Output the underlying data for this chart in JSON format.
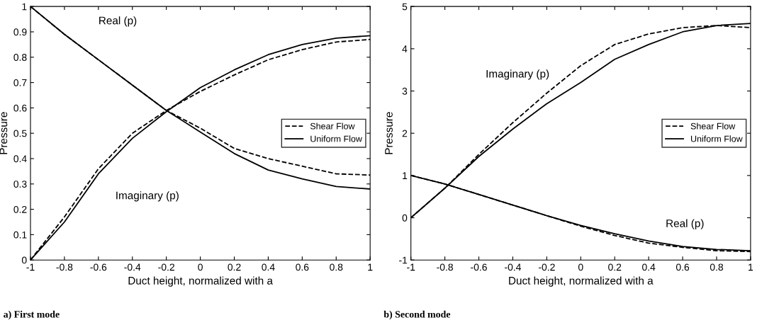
{
  "chart_data": [
    {
      "type": "line",
      "xlabel": "Duct height, normalized with a",
      "ylabel": "Pressure",
      "x": [
        -1,
        -0.8,
        -0.6,
        -0.4,
        -0.2,
        0,
        0.2,
        0.4,
        0.6,
        0.8,
        1
      ],
      "series": [
        {
          "name": "Shear Flow",
          "color": "#000000",
          "line_style": "dashed",
          "values": [
            1,
            0.89,
            0.79,
            0.69,
            0.59,
            0.52,
            0.44,
            0.4,
            0.37,
            0.34,
            0.335
          ]
        },
        {
          "name": "Uniform Flow",
          "color": "#000000",
          "line_style": "solid",
          "values": [
            1,
            0.89,
            0.79,
            0.69,
            0.59,
            0.505,
            0.42,
            0.355,
            0.32,
            0.29,
            0.28
          ]
        },
        {
          "color": "#000000",
          "line_style": "dashed",
          "values": [
            0,
            0.17,
            0.36,
            0.5,
            0.59,
            0.665,
            0.73,
            0.79,
            0.83,
            0.86,
            0.87
          ]
        },
        {
          "color": "#000000",
          "line_style": "solid",
          "values": [
            0,
            0.15,
            0.34,
            0.48,
            0.585,
            0.68,
            0.75,
            0.81,
            0.85,
            0.875,
            0.885
          ]
        }
      ],
      "xlim": [
        -1,
        1
      ],
      "xticks": [
        -1,
        -0.8,
        -0.6,
        -0.4,
        -0.2,
        0,
        0.2,
        0.4,
        0.6,
        0.8,
        1
      ],
      "ylim": [
        0,
        1
      ],
      "yticks": [
        0,
        0.1,
        0.2,
        0.3,
        0.4,
        0.5,
        0.6,
        0.7,
        0.8,
        0.9,
        1
      ],
      "grid": false,
      "legend": "right",
      "annotations": [
        "Real (p)",
        "Imaginary (p)",
        "a) First mode"
      ]
    },
    {
      "type": "line",
      "xlabel": "Duct height, normalized with a",
      "ylabel": "Pressure",
      "x": [
        -1,
        -0.8,
        -0.6,
        -0.4,
        -0.2,
        0,
        0.2,
        0.4,
        0.6,
        0.8,
        1
      ],
      "series": [
        {
          "name": "Shear Flow",
          "color": "#000000",
          "line_style": "dashed",
          "values": [
            0,
            0.7,
            1.5,
            2.25,
            2.95,
            3.6,
            4.1,
            4.35,
            4.5,
            4.55,
            4.5
          ]
        },
        {
          "name": "Uniform Flow",
          "color": "#000000",
          "line_style": "solid",
          "values": [
            0,
            0.7,
            1.45,
            2.1,
            2.7,
            3.2,
            3.75,
            4.1,
            4.4,
            4.55,
            4.6
          ]
        },
        {
          "color": "#000000",
          "line_style": "dashed",
          "values": [
            1,
            0.8,
            0.55,
            0.3,
            0.05,
            -0.2,
            -0.42,
            -0.6,
            -0.7,
            -0.78,
            -0.8
          ]
        },
        {
          "color": "#000000",
          "line_style": "solid",
          "values": [
            1,
            0.8,
            0.55,
            0.3,
            0.05,
            -0.18,
            -0.38,
            -0.55,
            -0.68,
            -0.75,
            -0.78
          ]
        }
      ],
      "xlim": [
        -1,
        1
      ],
      "xticks": [
        -1,
        -0.8,
        -0.6,
        -0.4,
        -0.2,
        0,
        0.2,
        0.4,
        0.6,
        0.8,
        1
      ],
      "ylim": [
        -1,
        5
      ],
      "yticks": [
        -1,
        0,
        1,
        2,
        3,
        4,
        5
      ],
      "grid": false,
      "legend": "right",
      "annotations": [
        "Imaginary (p)",
        "Real (p)",
        "b) Second mode"
      ]
    }
  ]
}
